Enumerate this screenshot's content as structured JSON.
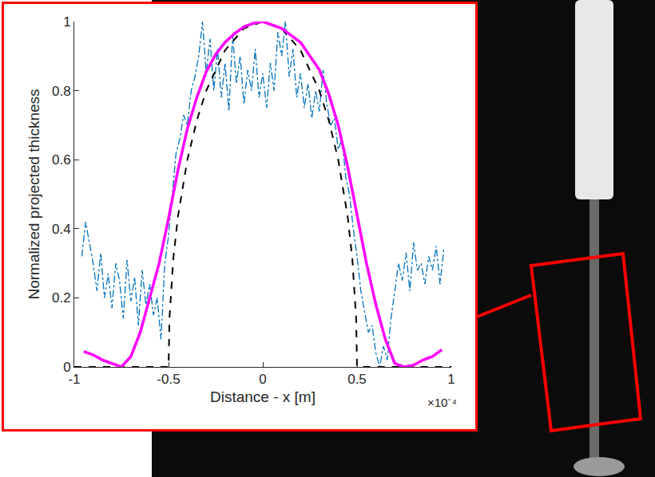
{
  "chart_data": {
    "type": "line",
    "x_label": "Distance - x [m]",
    "y_label": "Normalized projected thickness",
    "annotations": [
      "×10⁻⁴"
    ],
    "xlim": [
      -1,
      1
    ],
    "xticks": [
      -1,
      -0.5,
      0,
      0.5,
      1
    ],
    "ylim": [
      0,
      1
    ],
    "yticks": [
      0,
      0.2,
      0.4,
      0.6,
      0.8,
      1
    ],
    "grid": false,
    "series": [
      {
        "color": "#0072bd",
        "line_style": "dashdot",
        "x": [
          -0.96,
          -0.94,
          -0.92,
          -0.9,
          -0.88,
          -0.86,
          -0.84,
          -0.82,
          -0.8,
          -0.78,
          -0.76,
          -0.74,
          -0.72,
          -0.7,
          -0.68,
          -0.66,
          -0.64,
          -0.62,
          -0.6,
          -0.58,
          -0.56,
          -0.54,
          -0.52,
          -0.5,
          -0.48,
          -0.46,
          -0.44,
          -0.42,
          -0.4,
          -0.38,
          -0.36,
          -0.34,
          -0.32,
          -0.3,
          -0.28,
          -0.26,
          -0.24,
          -0.22,
          -0.2,
          -0.18,
          -0.16,
          -0.14,
          -0.12,
          -0.1,
          -0.08,
          -0.06,
          -0.04,
          -0.02,
          0,
          0.02,
          0.04,
          0.06,
          0.08,
          0.1,
          0.12,
          0.14,
          0.16,
          0.18,
          0.2,
          0.22,
          0.24,
          0.26,
          0.28,
          0.3,
          0.32,
          0.34,
          0.36,
          0.38,
          0.4,
          0.42,
          0.44,
          0.46,
          0.48,
          0.5,
          0.52,
          0.54,
          0.56,
          0.58,
          0.6,
          0.62,
          0.64,
          0.66,
          0.68,
          0.7,
          0.72,
          0.74,
          0.76,
          0.78,
          0.8,
          0.82,
          0.84,
          0.86,
          0.88,
          0.9,
          0.92,
          0.94,
          0.96
        ],
        "values": [
          0.32,
          0.42,
          0.36,
          0.3,
          0.22,
          0.33,
          0.2,
          0.27,
          0.17,
          0.3,
          0.25,
          0.14,
          0.31,
          0.19,
          0.26,
          0.12,
          0.28,
          0.18,
          0.24,
          0.15,
          0.2,
          0.08,
          0.3,
          0.38,
          0.5,
          0.62,
          0.66,
          0.73,
          0.7,
          0.8,
          0.84,
          0.9,
          1.0,
          0.85,
          0.95,
          0.8,
          0.92,
          0.78,
          0.88,
          0.74,
          0.96,
          0.82,
          0.9,
          0.76,
          0.86,
          0.8,
          0.92,
          0.78,
          0.85,
          0.75,
          0.88,
          0.8,
          0.97,
          0.9,
          1.0,
          0.84,
          0.92,
          0.78,
          0.85,
          0.75,
          0.82,
          0.72,
          0.8,
          0.74,
          0.86,
          0.76,
          0.7,
          0.72,
          0.63,
          0.66,
          0.55,
          0.5,
          0.4,
          0.32,
          0.22,
          0.16,
          0.1,
          0.12,
          0.04,
          0.0,
          0.06,
          0.02,
          0.14,
          0.22,
          0.3,
          0.25,
          0.33,
          0.22,
          0.36,
          0.28,
          0.3,
          0.24,
          0.32,
          0.28,
          0.35,
          0.24,
          0.34
        ]
      },
      {
        "color": "#000000",
        "line_style": "dash",
        "x": [
          -1,
          -0.5,
          -0.495,
          -0.475,
          -0.45,
          -0.4,
          -0.35,
          -0.3,
          -0.2,
          -0.1,
          0,
          0.1,
          0.2,
          0.3,
          0.35,
          0.4,
          0.45,
          0.475,
          0.495,
          0.5,
          1
        ],
        "values": [
          0,
          0,
          0.141,
          0.312,
          0.436,
          0.6,
          0.714,
          0.8,
          0.917,
          0.98,
          1,
          0.98,
          0.917,
          0.8,
          0.714,
          0.6,
          0.436,
          0.312,
          0.141,
          0,
          0
        ]
      },
      {
        "color": "#ff00ff",
        "line_style": "solid",
        "x": [
          -0.95,
          -0.9,
          -0.85,
          -0.8,
          -0.75,
          -0.7,
          -0.65,
          -0.6,
          -0.55,
          -0.5,
          -0.45,
          -0.4,
          -0.35,
          -0.3,
          -0.25,
          -0.2,
          -0.15,
          -0.1,
          -0.05,
          0,
          0.05,
          0.1,
          0.15,
          0.2,
          0.25,
          0.3,
          0.35,
          0.4,
          0.45,
          0.5,
          0.55,
          0.6,
          0.65,
          0.7,
          0.75,
          0.8,
          0.85,
          0.9,
          0.95
        ],
        "values": [
          0.045,
          0.035,
          0.02,
          0.01,
          0.0,
          0.03,
          0.1,
          0.2,
          0.3,
          0.43,
          0.57,
          0.69,
          0.78,
          0.855,
          0.905,
          0.94,
          0.965,
          0.985,
          0.995,
          1.0,
          0.99,
          0.98,
          0.96,
          0.94,
          0.9,
          0.86,
          0.79,
          0.7,
          0.58,
          0.44,
          0.3,
          0.18,
          0.08,
          0.01,
          0.0,
          0.005,
          0.02,
          0.03,
          0.05
        ]
      }
    ]
  }
}
